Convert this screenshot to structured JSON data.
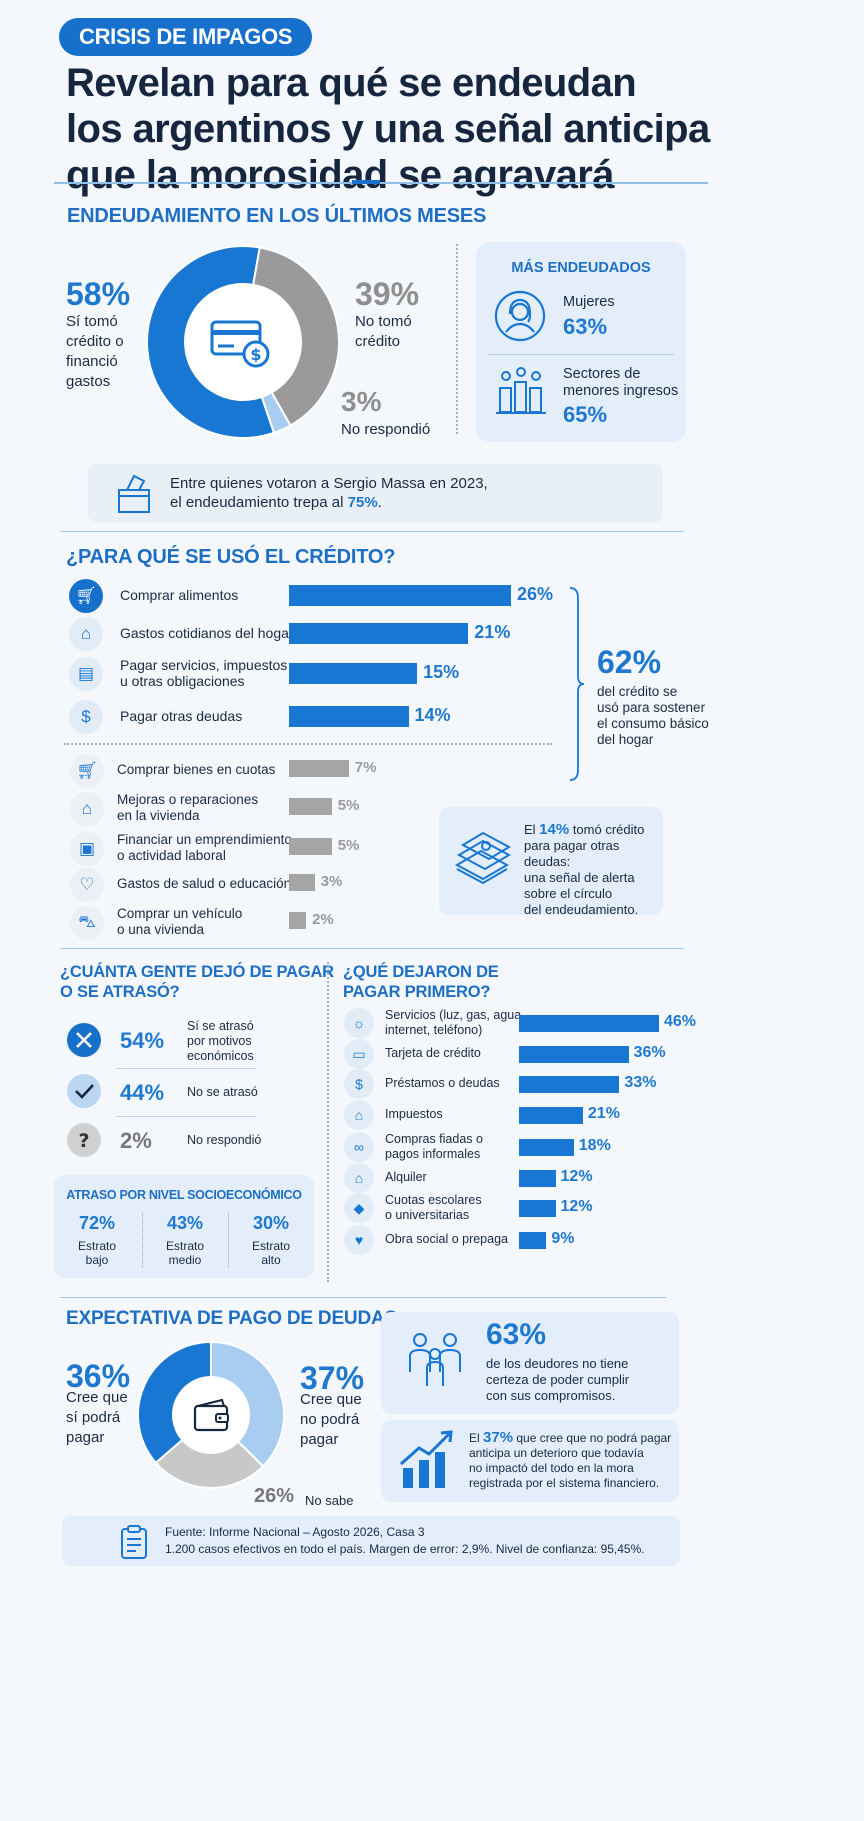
{
  "header": {
    "tag": "CRISIS DE IMPAGOS",
    "headline": [
      "Revelan para qué se endeudan",
      "los argentinos y una señal anticipa",
      "que la morosidad se agravará"
    ]
  },
  "colors": {
    "accent": "#1877d2",
    "gray": "#9a9a9a",
    "light_blue": "#a8cdf0",
    "card": "#e3eefa"
  },
  "endeudamiento": {
    "title": "ENDEUDAMIENTO EN LOS ÚLTIMOS MESES",
    "yes_pct": "58%",
    "yes_label": [
      "Sí tomó",
      "crédito o",
      "financió",
      "gastos"
    ],
    "no_pct": "39%",
    "no_label": [
      "No tomó",
      "crédito"
    ],
    "nr_pct": "3%",
    "nr_label": "No respondió",
    "center_icon": "credit-card-dollar-icon"
  },
  "mas_endeudados": {
    "title": "MÁS ENDEUDADOS",
    "items": [
      {
        "label": "Mujeres",
        "value": "63%",
        "icon": "woman-icon"
      },
      {
        "label": "Sectores de menores ingresos",
        "value": "65%",
        "icon": "people-bars-icon"
      }
    ]
  },
  "massa_note": {
    "line1": "Entre quienes votaron a Sergio Massa en 2023,",
    "line2_prefix": "el endeudamiento trepa al ",
    "line2_value": "75%",
    "line2_suffix": ".",
    "icon": "ballot-box-icon"
  },
  "uso_credito": {
    "title": "¿PARA QUÉ SE USÓ EL CRÉDITO?",
    "summary_pct": "62%",
    "summary_text": [
      "del crédito se",
      "usó para sostener",
      "el consumo básico",
      "del hogar"
    ],
    "alert_prefix": "El ",
    "alert_value": "14%",
    "alert_lines": [
      " tomó crédito",
      "para pagar otras deudas:",
      "una señal de alerta",
      "sobre el círculo",
      "del endeudamiento."
    ],
    "alert_icon": "money-stack-icon"
  },
  "orden": {
    "title": "¿QUÉ DEJARON DE PAGAR PRIMERO?"
  },
  "atraso": {
    "title": [
      "¿CUÁNTA GENTE DEJÓ DE PAGAR",
      "O SE ATRASÓ?"
    ],
    "rows": [
      {
        "pct": "54%",
        "label": [
          "Sí se atrasó",
          "por motivos",
          "económicos"
        ],
        "icon": "x-circle-icon"
      },
      {
        "pct": "44%",
        "label": [
          "No se atrasó"
        ],
        "icon": "check-circle-icon"
      },
      {
        "pct": "2%",
        "label": [
          "No respondió"
        ],
        "icon": "question-circle-icon"
      }
    ],
    "nivel_title": "ATRASO POR NIVEL SOCIOECONÓMICO",
    "niveles": [
      {
        "pct": "72%",
        "label": [
          "Estrato",
          "bajo"
        ]
      },
      {
        "pct": "43%",
        "label": [
          "Estrato",
          "medio"
        ]
      },
      {
        "pct": "30%",
        "label": [
          "Estrato",
          "alto"
        ]
      }
    ]
  },
  "expectativa": {
    "title": "EXPECTATIVA DE PAGO DE DEUDAS",
    "yes_pct": "36%",
    "yes_label": [
      "Cree que",
      "sí podrá",
      "pagar"
    ],
    "no_pct": "37%",
    "no_label": [
      "Cree que",
      "no podrá",
      "pagar"
    ],
    "ns_pct": "26%",
    "ns_label": "No sabe",
    "center_icon": "wallet-icon",
    "card1_pct": "63%",
    "card1_text": [
      "de los deudores no tiene",
      "certeza de poder cumplir",
      "con sus compromisos."
    ],
    "card2_prefix": "El ",
    "card2_value": "37%",
    "card2_lines": [
      " que cree que no podrá pagar",
      "anticipa un deterioro que todavía",
      "no impactó del todo en la mora",
      "registrada por el sistema financiero."
    ]
  },
  "footer": {
    "line1": "Fuente: Informe Nacional – Agosto 2026, Casa 3",
    "line2": "1.200 casos efectivos en todo el país. Margen de error: 2,9%. Nivel de confianza: 95,45%.",
    "icon": "clipboard-icon"
  },
  "chart_data": [
    {
      "type": "pie",
      "title": "ENDEUDAMIENTO EN LOS ÚLTIMOS MESES",
      "categories": [
        "Sí tomó crédito o financió gastos",
        "No tomó crédito",
        "No respondió"
      ],
      "values": [
        58,
        39,
        3
      ],
      "colors": [
        "#1877d2",
        "#9a9a9a",
        "#a8cdf0"
      ]
    },
    {
      "type": "bar",
      "title": "¿PARA QUÉ SE USÓ EL CRÉDITO?",
      "categories": [
        "Comprar alimentos",
        "Gastos cotidianos del hogar",
        "Pagar servicios, impuestos u otras obligaciones",
        "Pagar otras deudas",
        "Comprar bienes en cuotas",
        "Mejoras o reparaciones en la vivienda",
        "Financiar un emprendimiento o actividad laboral",
        "Gastos de salud o educación",
        "Comprar un vehículo o una vivienda"
      ],
      "labels": [
        [
          "Comprar alimentos"
        ],
        [
          "Gastos cotidianos del hogar"
        ],
        [
          "Pagar servicios, impuestos",
          "u otras obligaciones"
        ],
        [
          "Pagar otras deudas"
        ],
        [
          "Comprar bienes en cuotas"
        ],
        [
          "Mejoras o reparaciones",
          "en la vivienda"
        ],
        [
          "Financiar un emprendimiento",
          "o actividad laboral"
        ],
        [
          "Gastos de salud o educación"
        ],
        [
          "Comprar un vehículo",
          "o una vivienda"
        ]
      ],
      "values": [
        26,
        21,
        15,
        14,
        7,
        5,
        5,
        3,
        2
      ],
      "value_labels": [
        "26%",
        "21%",
        "15%",
        "14%",
        "7%",
        "5%",
        "5%",
        "3%",
        "2%"
      ],
      "icons": [
        "cart-icon",
        "house-icon",
        "document-icon",
        "refresh-dollar-icon",
        "cart-icon",
        "house-icon",
        "briefcase-icon",
        "heart-hand-icon",
        "car-icon"
      ],
      "highlight_count": 4,
      "xlim": [
        0,
        26
      ]
    },
    {
      "type": "bar",
      "title": "¿QUÉ DEJARON DE PAGAR PRIMERO?",
      "categories": [
        "Servicios (luz, gas, agua, internet, teléfono)",
        "Tarjeta de crédito",
        "Préstamos o deudas",
        "Impuestos",
        "Compras fiadas o pagos informales",
        "Alquiler",
        "Cuotas escolares o universitarias",
        "Obra social o prepaga"
      ],
      "labels": [
        [
          "Servicios (luz, gas, agua,",
          "internet, teléfono)"
        ],
        [
          "Tarjeta de crédito"
        ],
        [
          "Préstamos o deudas"
        ],
        [
          "Impuestos"
        ],
        [
          "Compras fiadas o",
          "pagos informales"
        ],
        [
          "Alquiler"
        ],
        [
          "Cuotas escolares",
          "o universitarias"
        ],
        [
          "Obra social o prepaga"
        ]
      ],
      "values": [
        46,
        36,
        33,
        21,
        18,
        12,
        12,
        9
      ],
      "value_labels": [
        "46%",
        "36%",
        "33%",
        "21%",
        "18%",
        "12%",
        "12%",
        "9%"
      ],
      "icons": [
        "lightbulb-icon",
        "credit-card-icon",
        "dollar-circle-icon",
        "bank-icon",
        "handshake-icon",
        "house-icon",
        "graduation-cap-icon",
        "health-icon"
      ],
      "xlim": [
        0,
        46
      ]
    },
    {
      "type": "pie",
      "title": "EXPECTATIVA DE PAGO DE DEUDAS",
      "categories": [
        "Cree que sí podrá pagar",
        "Cree que no podrá pagar",
        "No sabe"
      ],
      "values": [
        36,
        37,
        26
      ],
      "colors": [
        "#1877d2",
        "#a8cdf0",
        "#c8c8c8"
      ]
    }
  ]
}
